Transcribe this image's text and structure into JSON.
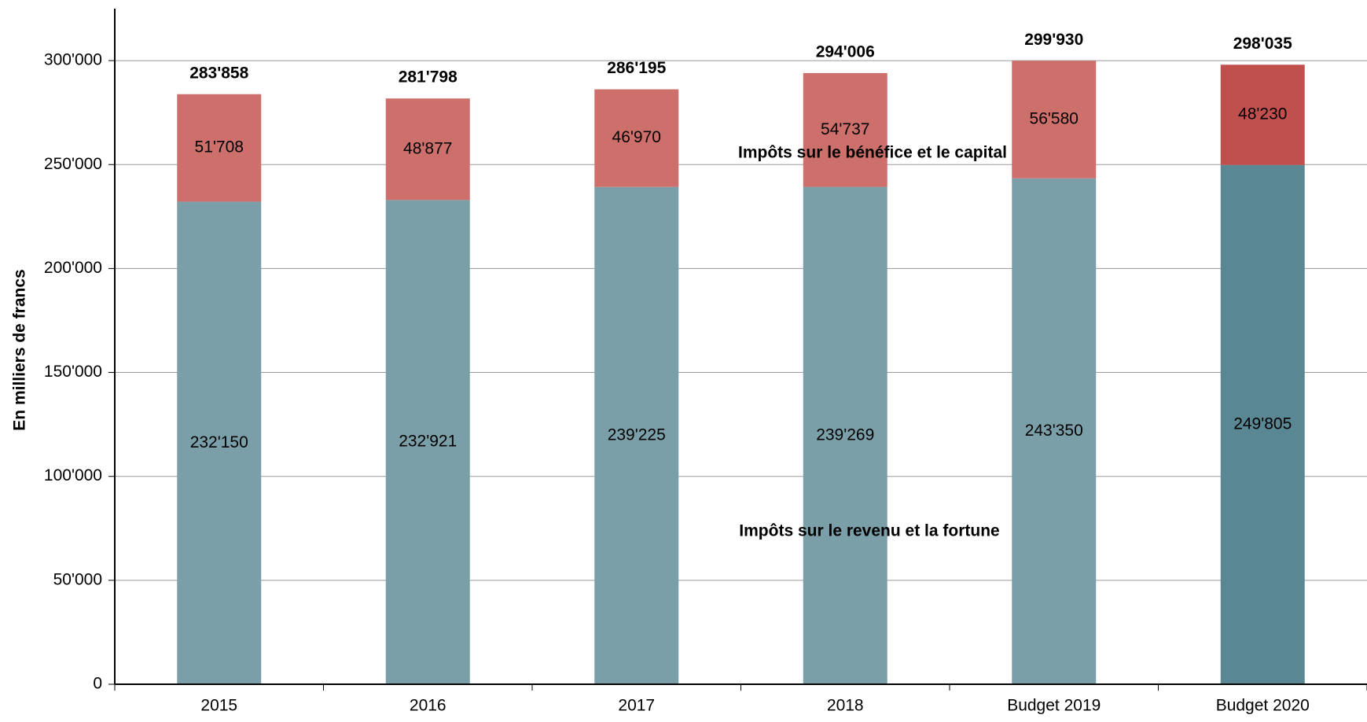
{
  "chart_data": {
    "type": "stacked_bar",
    "y_label": "En milliers de francs",
    "categories": [
      "2015",
      "2016",
      "2017",
      "2018",
      "Budget 2019",
      "Budget 2020"
    ],
    "series": [
      {
        "name": "Impôts sur le revenu et la fortune",
        "color": "#7b9fa8",
        "colors": [
          "#7b9fa8",
          "#7b9fa8",
          "#7b9fa8",
          "#7b9fa8",
          "#7b9fa8",
          "#5a8794"
        ],
        "values": [
          232150,
          232921,
          239225,
          239269,
          243350,
          249805
        ],
        "value_labels": [
          "232'150",
          "232'921",
          "239'225",
          "239'269",
          "243'350",
          "249'805"
        ]
      },
      {
        "name": "Impôts sur le bénéfice et le capital",
        "color": "#cd706c",
        "colors": [
          "#cd706c",
          "#cd706c",
          "#cd706c",
          "#cd706c",
          "#cd706c",
          "#c0504d"
        ],
        "values": [
          51708,
          48877,
          46970,
          54737,
          56580,
          48230
        ],
        "value_labels": [
          "51'708",
          "48'877",
          "46'970",
          "54'737",
          "56'580",
          "48'230"
        ]
      }
    ],
    "totals": [
      283858,
      281798,
      286195,
      294006,
      299930,
      298035
    ],
    "totals_labels": [
      "283'858",
      "281'798",
      "286'195",
      "294'006",
      "299'930",
      "298'035"
    ],
    "ylim": [
      0,
      325000
    ],
    "yticks": [
      0,
      {
        "value": 50000,
        "label": "50'000"
      },
      {
        "value": 100000,
        "label": "100'000"
      },
      {
        "value": 150000,
        "label": "150'000"
      },
      {
        "value": 200000,
        "label": "200'000"
      },
      {
        "value": 250000,
        "label": "250'000"
      },
      {
        "value": 300000,
        "label": "300'000"
      }
    ],
    "grid": true
  }
}
